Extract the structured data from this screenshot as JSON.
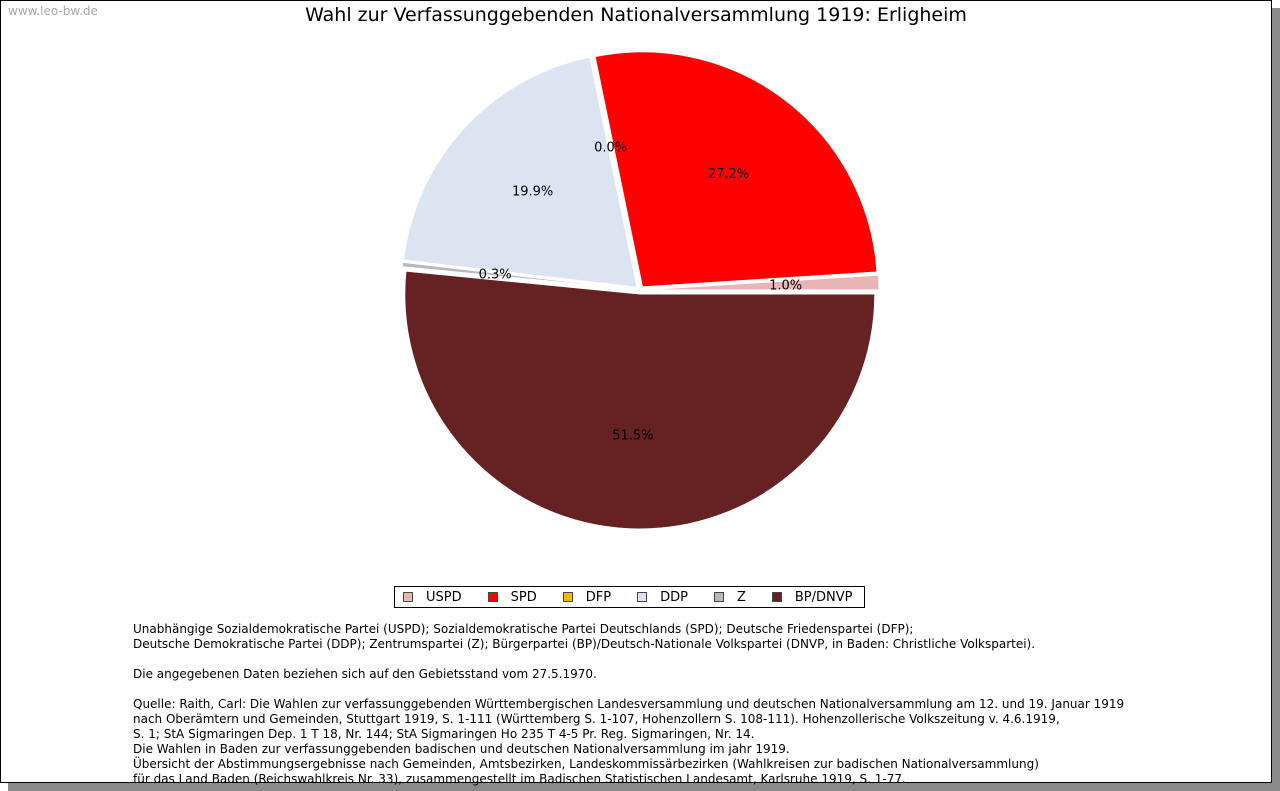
{
  "watermark": "www.leo-bw.de",
  "chart_data": {
    "type": "pie",
    "title": "Wahl zur Verfassunggebenden Nationalversammlung 1919: Erligheim",
    "categories": [
      "USPD",
      "SPD",
      "DFP",
      "DDP",
      "Z",
      "BP/DNVP"
    ],
    "values": [
      1.0,
      27.2,
      0.0,
      19.9,
      0.3,
      51.5
    ],
    "labels": [
      "1.0%",
      "27.2%",
      "0.0%",
      "19.9%",
      "0.3%",
      "51.5%"
    ],
    "colors": [
      "#e8b4b4",
      "#ff0000",
      "#f5b800",
      "#dce4f2",
      "#b8b8b8",
      "#662222"
    ],
    "legend_position": "bottom"
  },
  "notes": {
    "parties_line1": "Unabhängige Sozialdemokratische Partei (USPD); Sozialdemokratische Partei Deutschlands (SPD); Deutsche Friedenspartei (DFP);",
    "parties_line2": "Deutsche Demokratische Partei (DDP); Zentrumspartei (Z); Bürgerpartei (BP)/Deutsch-Nationale Volkspartei (DNVP, in Baden: Christliche Volkspartei).",
    "territory": "Die angegebenen Daten beziehen sich auf den Gebietsstand vom 27.5.1970.",
    "source1": "Quelle: Raith, Carl: Die Wahlen zur verfassunggebenden Württembergischen Landesversammlung und deutschen Nationalversammlung am 12. und 19. Januar 1919",
    "source2": "nach Oberämtern und Gemeinden, Stuttgart 1919, S. 1-111 (Württemberg S. 1-107, Hohenzollern S. 108-111). Hohenzollerische Volkszeitung v. 4.6.1919,",
    "source3": "S. 1; StA Sigmaringen Dep. 1 T 18, Nr. 144; StA Sigmaringen Ho 235 T 4-5 Pr. Reg. Sigmaringen, Nr. 14.",
    "source4": "Die Wahlen in Baden zur verfassunggebenden badischen und deutschen Nationalversammlung im jahr 1919.",
    "source5": "Übersicht der Abstimmungsergebnisse nach Gemeinden, Amtsbezirken, Landeskommissärbezirken (Wahlkreisen zur badischen Nationalversammlung)",
    "source6": "für das Land Baden (Reichswahlkreis Nr. 33), zusammengestellt im Badischen Statistischen Landesamt, Karlsruhe 1919, S. 1-77."
  }
}
